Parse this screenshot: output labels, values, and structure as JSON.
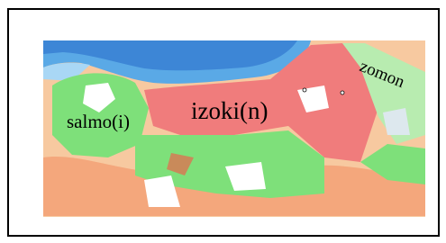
{
  "labels": [
    "salmo(i)",
    "izoki(n)",
    "zomon"
  ]
}
